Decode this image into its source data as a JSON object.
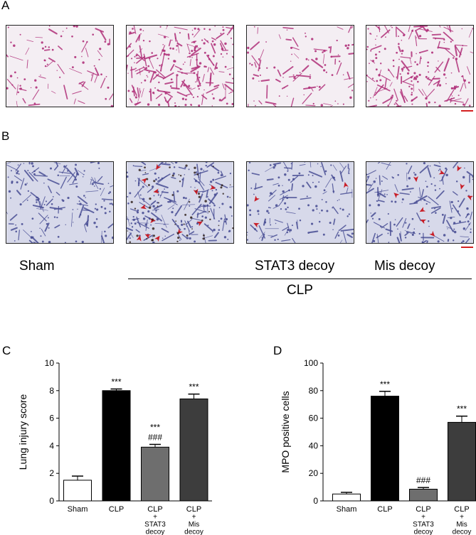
{
  "panels": {
    "a": "A",
    "b": "B",
    "c": "C",
    "d": "D"
  },
  "labels": {
    "sham": "Sham",
    "stat3": "STAT3 decoy",
    "mis": "Mis decoy",
    "clp": "CLP"
  },
  "colors": {
    "he_bg": "#f4eef3",
    "he_stain": "#b0307a",
    "ihc_bg": "#d7d9ea",
    "ihc_stain": "#4a4f95",
    "arrow": "#c81e28",
    "scale": "#d42020"
  },
  "chart_data": [
    {
      "type": "bar",
      "panel": "C",
      "ylabel": "Lung injury score",
      "ylim": [
        0,
        10
      ],
      "yticks": [
        "0",
        "2",
        "4",
        "6",
        "8",
        "10"
      ],
      "categories": [
        [
          "Sham"
        ],
        [
          "CLP"
        ],
        [
          "CLP",
          "+",
          "STAT3",
          "decoy"
        ],
        [
          "CLP",
          "+",
          "Mis",
          "decoy"
        ]
      ],
      "values": [
        1.5,
        8.0,
        3.9,
        7.4
      ],
      "errors": [
        0.3,
        0.12,
        0.2,
        0.35
      ],
      "bar_colors": [
        "#ffffff",
        "#000000",
        "#6e6e6e",
        "#3d3d3d"
      ],
      "annotations": [
        [],
        [
          "***"
        ],
        [
          "***",
          "###"
        ],
        [
          "***"
        ]
      ]
    },
    {
      "type": "bar",
      "panel": "D",
      "ylabel": "MPO positive cells",
      "ylim": [
        0,
        100
      ],
      "yticks": [
        "0",
        "20",
        "40",
        "60",
        "80",
        "100"
      ],
      "categories": [
        [
          "Sham"
        ],
        [
          "CLP"
        ],
        [
          "CLP",
          "+",
          "STAT3",
          "decoy"
        ],
        [
          "CLP",
          "+",
          "Mis",
          "decoy"
        ]
      ],
      "values": [
        5,
        76,
        8.5,
        57
      ],
      "errors": [
        1.2,
        3.5,
        1.2,
        4.5
      ],
      "bar_colors": [
        "#ffffff",
        "#000000",
        "#6e6e6e",
        "#3d3d3d"
      ],
      "annotations": [
        [],
        [
          "***"
        ],
        [
          "###"
        ],
        [
          "***"
        ]
      ]
    }
  ]
}
